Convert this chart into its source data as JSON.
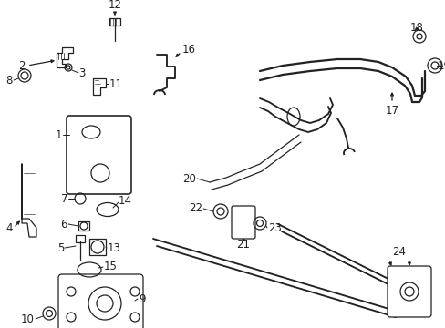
{
  "bg": "#ffffff",
  "lc": "#222222",
  "lw": 0.9,
  "fs": 8.5,
  "figw": 4.89,
  "figh": 3.6,
  "dpi": 100
}
